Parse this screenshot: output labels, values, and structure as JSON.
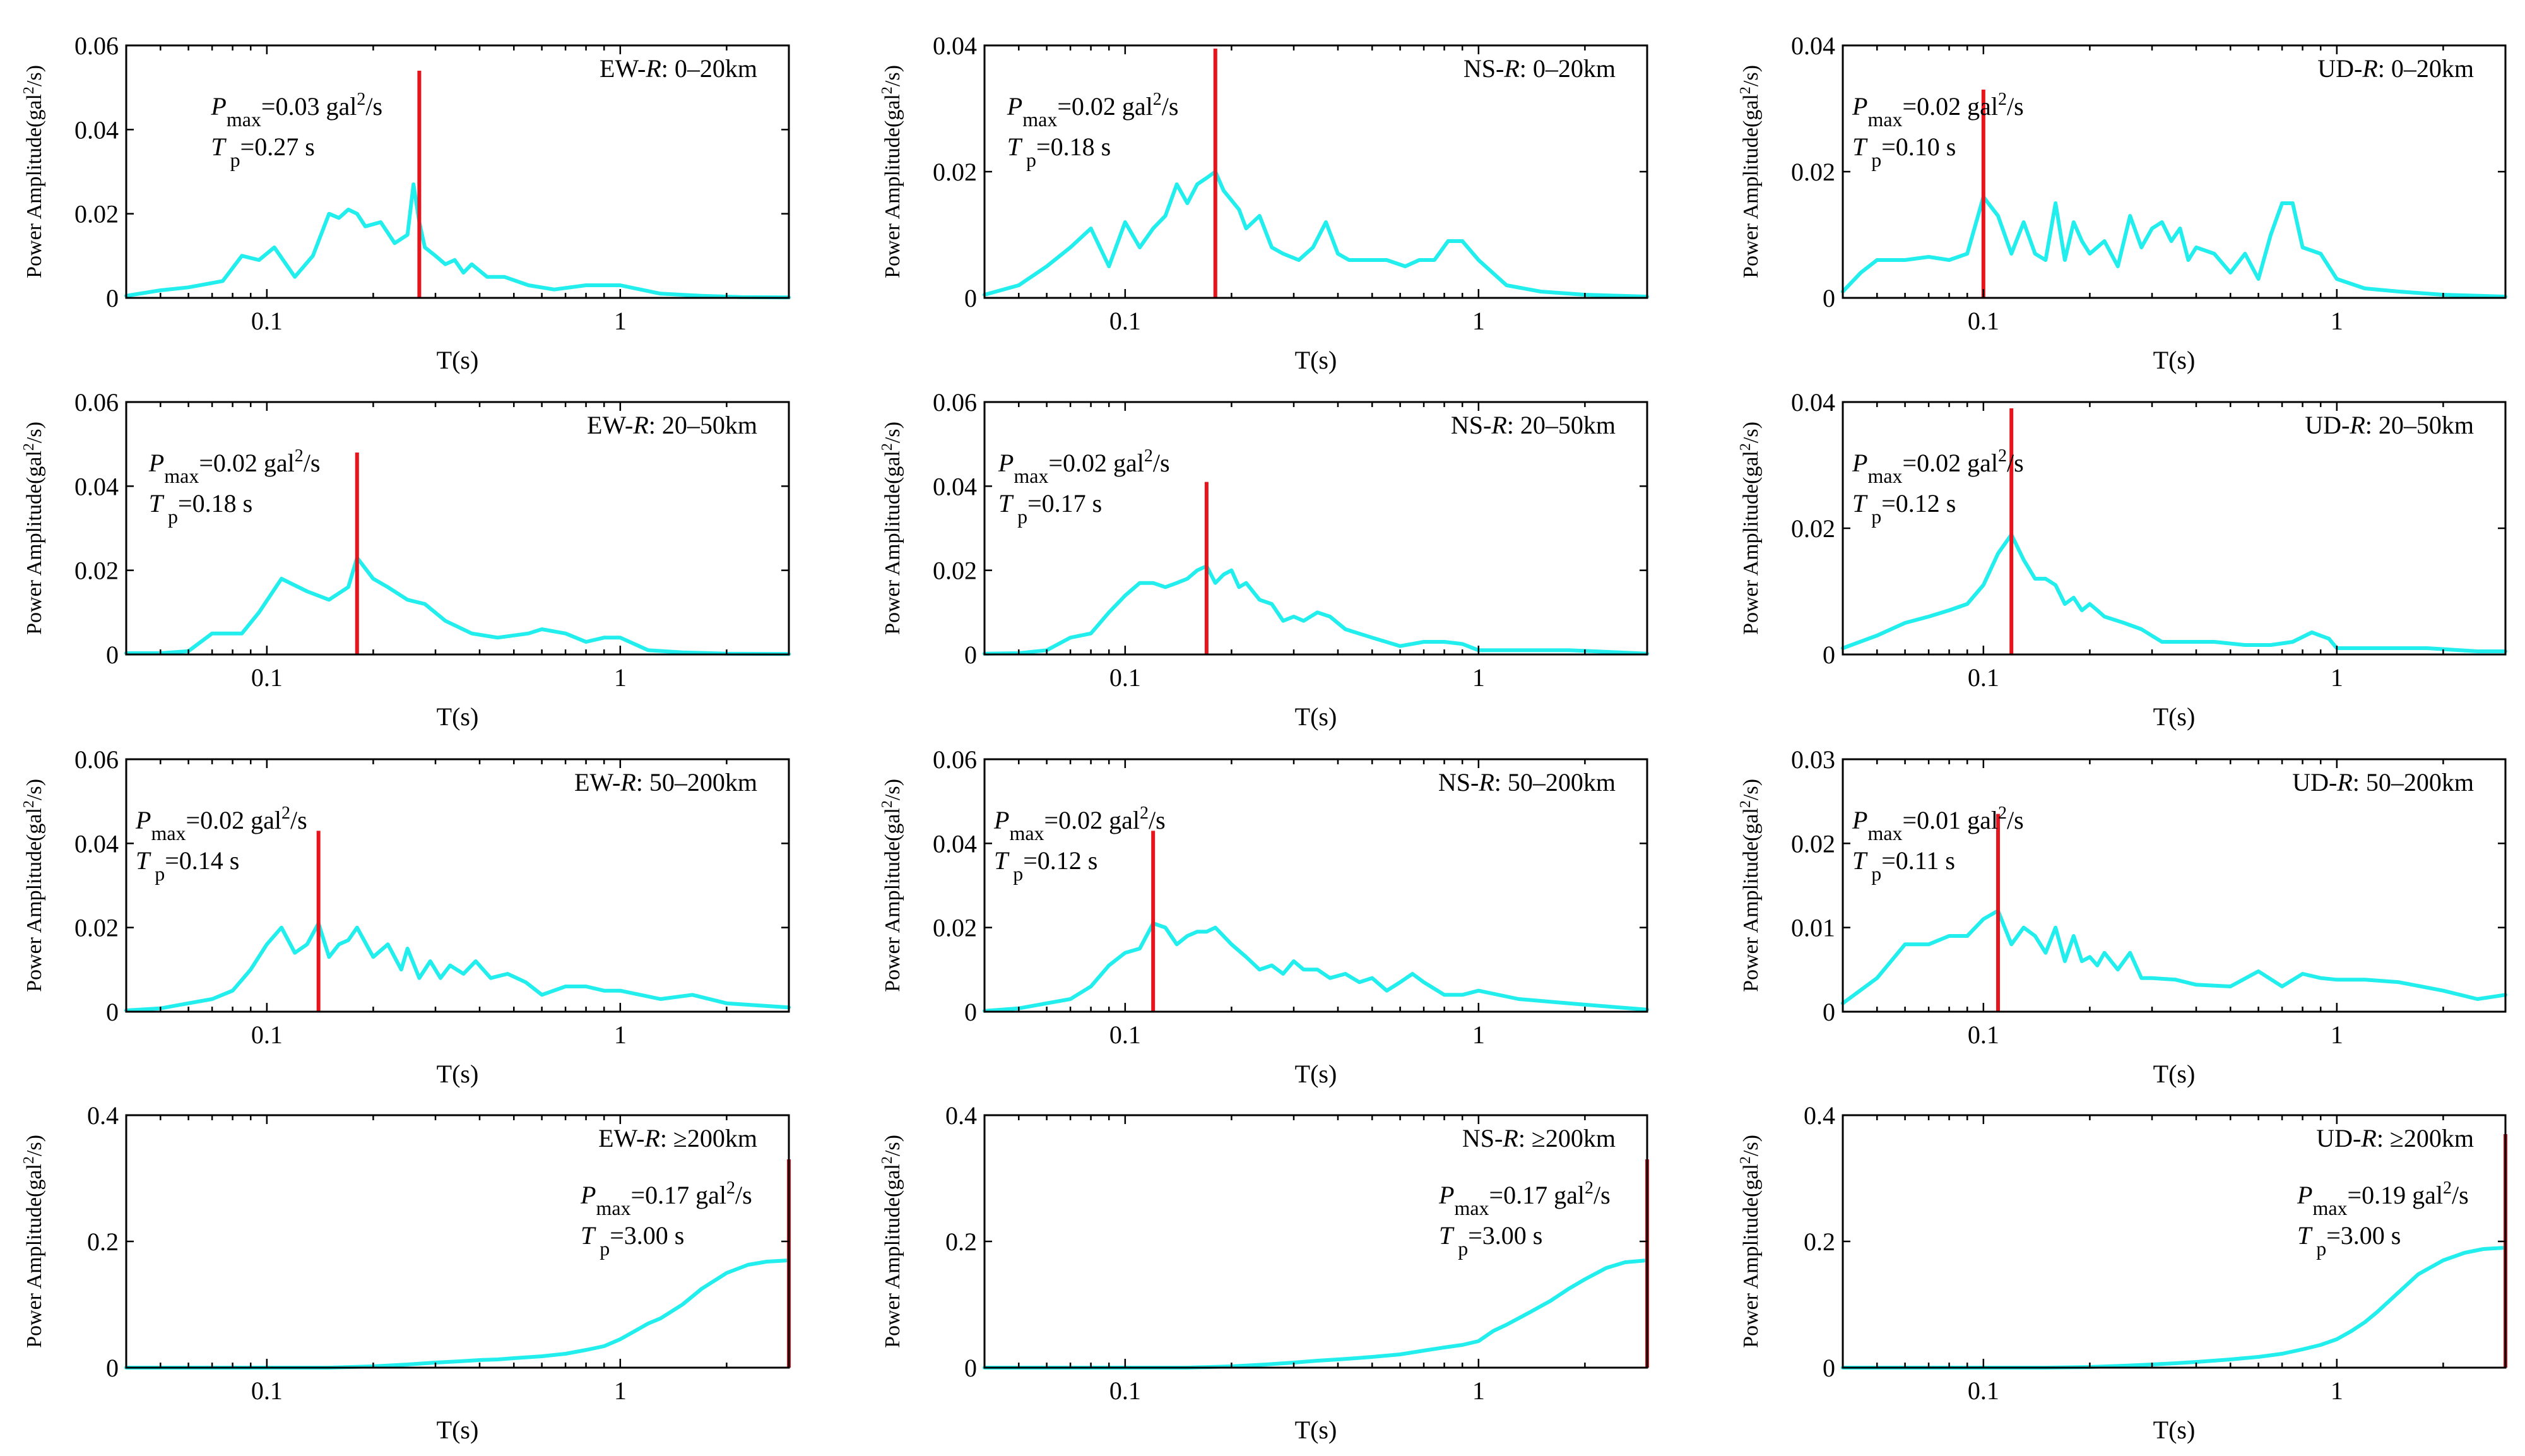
{
  "figure": {
    "x_axis_label": "T(s)",
    "y_axis_label": "Power Amplitude(gal",
    "y_axis_label_unit": "/s)",
    "y_axis_label_sup": "2",
    "annotation_labels": {
      "p": "P",
      "p_sub": "max",
      "t": "T",
      "t_sub": "p",
      "gal": "gal",
      "gal_sup": "2",
      "per_s": "/s"
    }
  },
  "chart_data": [
    {
      "type": "line",
      "title_comp": "EW-",
      "title_r": "R",
      "title_range": ": 0–20km",
      "xscale": "log",
      "xlim": [
        0.04,
        3.0
      ],
      "ylim": [
        0,
        0.06
      ],
      "yticks": [
        "0",
        "0.02",
        "0.04",
        "0.06"
      ],
      "xticks": [
        "0.1",
        "1"
      ],
      "x": [
        0.04,
        0.05,
        0.06,
        0.075,
        0.085,
        0.095,
        0.105,
        0.12,
        0.135,
        0.15,
        0.16,
        0.17,
        0.18,
        0.19,
        0.21,
        0.23,
        0.25,
        0.26,
        0.27,
        0.28,
        0.3,
        0.32,
        0.34,
        0.36,
        0.38,
        0.42,
        0.47,
        0.55,
        0.65,
        0.8,
        1.0,
        1.3,
        1.7,
        2.2,
        3.0
      ],
      "y": [
        0.0005,
        0.0018,
        0.0025,
        0.004,
        0.01,
        0.009,
        0.012,
        0.005,
        0.01,
        0.02,
        0.019,
        0.021,
        0.02,
        0.017,
        0.018,
        0.013,
        0.015,
        0.027,
        0.018,
        0.012,
        0.01,
        0.008,
        0.009,
        0.006,
        0.008,
        0.005,
        0.005,
        0.003,
        0.002,
        0.003,
        0.003,
        0.001,
        0.0005,
        0.0002,
        0.0001
      ],
      "peak_t": 0.27,
      "peak_line_top": 0.054,
      "p_max": "=0.03",
      "t_p": "=0.27 s",
      "annot_pos": "upper-left"
    },
    {
      "type": "line",
      "title_comp": "NS-",
      "title_r": "R",
      "title_range": ": 0–20km",
      "xscale": "log",
      "xlim": [
        0.04,
        3.0
      ],
      "ylim": [
        0,
        0.04
      ],
      "yticks": [
        "0",
        "0.02",
        "0.04"
      ],
      "xticks": [
        "0.1",
        "1"
      ],
      "x": [
        0.04,
        0.05,
        0.06,
        0.07,
        0.08,
        0.09,
        0.1,
        0.11,
        0.12,
        0.13,
        0.14,
        0.15,
        0.16,
        0.17,
        0.18,
        0.19,
        0.21,
        0.22,
        0.24,
        0.26,
        0.28,
        0.31,
        0.34,
        0.37,
        0.4,
        0.43,
        0.47,
        0.55,
        0.62,
        0.68,
        0.75,
        0.82,
        0.9,
        1.0,
        1.2,
        1.5,
        2.0,
        3.0
      ],
      "y": [
        0.0005,
        0.002,
        0.005,
        0.008,
        0.011,
        0.005,
        0.012,
        0.008,
        0.011,
        0.013,
        0.018,
        0.015,
        0.018,
        0.019,
        0.02,
        0.017,
        0.014,
        0.011,
        0.013,
        0.008,
        0.007,
        0.006,
        0.008,
        0.012,
        0.007,
        0.006,
        0.006,
        0.006,
        0.005,
        0.006,
        0.006,
        0.009,
        0.009,
        0.006,
        0.002,
        0.001,
        0.0005,
        0.0002
      ],
      "peak_t": 0.18,
      "peak_line_top": 0.0395,
      "p_max": "=0.02",
      "t_p": "=0.18 s",
      "annot_pos": "upper-left"
    },
    {
      "type": "line",
      "title_comp": "UD-",
      "title_r": "R",
      "title_range": ": 0–20km",
      "xscale": "log",
      "xlim": [
        0.04,
        3.0
      ],
      "ylim": [
        0,
        0.04
      ],
      "yticks": [
        "0",
        "0.02",
        "0.04"
      ],
      "xticks": [
        "0.1",
        "1"
      ],
      "x": [
        0.04,
        0.045,
        0.05,
        0.06,
        0.07,
        0.08,
        0.09,
        0.1,
        0.11,
        0.12,
        0.13,
        0.14,
        0.15,
        0.16,
        0.17,
        0.18,
        0.19,
        0.2,
        0.22,
        0.24,
        0.26,
        0.28,
        0.3,
        0.32,
        0.34,
        0.36,
        0.38,
        0.4,
        0.45,
        0.5,
        0.55,
        0.6,
        0.65,
        0.7,
        0.75,
        0.8,
        0.9,
        1.0,
        1.2,
        1.5,
        2.0,
        3.0
      ],
      "y": [
        0.001,
        0.004,
        0.006,
        0.006,
        0.0065,
        0.006,
        0.007,
        0.016,
        0.013,
        0.007,
        0.012,
        0.007,
        0.006,
        0.015,
        0.006,
        0.012,
        0.009,
        0.007,
        0.009,
        0.005,
        0.013,
        0.008,
        0.011,
        0.012,
        0.009,
        0.011,
        0.006,
        0.008,
        0.007,
        0.004,
        0.007,
        0.003,
        0.01,
        0.015,
        0.015,
        0.008,
        0.007,
        0.003,
        0.0015,
        0.001,
        0.0005,
        0.0002
      ],
      "peak_t": 0.1,
      "peak_line_top": 0.033,
      "p_max": "=0.02",
      "t_p": "=0.10 s",
      "annot_pos": "upper-left"
    },
    {
      "type": "line",
      "title_comp": "EW-",
      "title_r": "R",
      "title_range": ": 20–50km",
      "xscale": "log",
      "xlim": [
        0.04,
        3.0
      ],
      "ylim": [
        0,
        0.06
      ],
      "yticks": [
        "0",
        "0.02",
        "0.04",
        "0.06"
      ],
      "xticks": [
        "0.1",
        "1"
      ],
      "x": [
        0.04,
        0.05,
        0.06,
        0.07,
        0.075,
        0.085,
        0.095,
        0.11,
        0.13,
        0.15,
        0.17,
        0.18,
        0.2,
        0.22,
        0.25,
        0.28,
        0.32,
        0.38,
        0.45,
        0.55,
        0.6,
        0.7,
        0.8,
        0.9,
        1.0,
        1.2,
        1.5,
        2.0,
        3.0
      ],
      "y": [
        0.0003,
        0.0003,
        0.0008,
        0.005,
        0.005,
        0.005,
        0.01,
        0.018,
        0.015,
        0.013,
        0.016,
        0.023,
        0.018,
        0.016,
        0.013,
        0.012,
        0.008,
        0.005,
        0.004,
        0.005,
        0.006,
        0.005,
        0.003,
        0.004,
        0.004,
        0.001,
        0.0005,
        0.0002,
        0.0001
      ],
      "peak_t": 0.18,
      "peak_line_top": 0.048,
      "p_max": "=0.02",
      "t_p": "=0.18 s",
      "annot_pos": "upper-left"
    },
    {
      "type": "line",
      "title_comp": "NS-",
      "title_r": "R",
      "title_range": ": 20–50km",
      "xscale": "log",
      "xlim": [
        0.04,
        3.0
      ],
      "ylim": [
        0,
        0.06
      ],
      "yticks": [
        "0",
        "0.02",
        "0.04",
        "0.06"
      ],
      "xticks": [
        "0.1",
        "1"
      ],
      "x": [
        0.04,
        0.05,
        0.06,
        0.07,
        0.08,
        0.09,
        0.1,
        0.11,
        0.12,
        0.13,
        0.14,
        0.15,
        0.16,
        0.17,
        0.18,
        0.19,
        0.2,
        0.21,
        0.22,
        0.24,
        0.26,
        0.28,
        0.3,
        0.32,
        0.35,
        0.38,
        0.42,
        0.5,
        0.6,
        0.7,
        0.8,
        0.9,
        1.0,
        1.3,
        1.8,
        2.5,
        3.0
      ],
      "y": [
        0.0002,
        0.0003,
        0.001,
        0.004,
        0.005,
        0.01,
        0.014,
        0.017,
        0.017,
        0.016,
        0.017,
        0.018,
        0.02,
        0.021,
        0.017,
        0.019,
        0.02,
        0.016,
        0.017,
        0.013,
        0.012,
        0.008,
        0.009,
        0.008,
        0.01,
        0.009,
        0.006,
        0.004,
        0.002,
        0.003,
        0.003,
        0.0025,
        0.001,
        0.001,
        0.001,
        0.0005,
        0.0002
      ],
      "peak_t": 0.17,
      "peak_line_top": 0.041,
      "p_max": "=0.02",
      "t_p": "=0.17 s",
      "annot_pos": "upper-left"
    },
    {
      "type": "line",
      "title_comp": "UD-",
      "title_r": "R",
      "title_range": ": 20–50km",
      "xscale": "log",
      "xlim": [
        0.04,
        3.0
      ],
      "ylim": [
        0,
        0.04
      ],
      "yticks": [
        "0",
        "0.02",
        "0.04"
      ],
      "xticks": [
        "0.1",
        "1"
      ],
      "x": [
        0.04,
        0.05,
        0.06,
        0.07,
        0.08,
        0.09,
        0.1,
        0.11,
        0.12,
        0.13,
        0.14,
        0.15,
        0.16,
        0.17,
        0.18,
        0.19,
        0.2,
        0.21,
        0.22,
        0.25,
        0.28,
        0.32,
        0.38,
        0.45,
        0.55,
        0.65,
        0.75,
        0.85,
        0.95,
        1.0,
        1.3,
        1.8,
        2.5,
        3.0
      ],
      "y": [
        0.001,
        0.003,
        0.005,
        0.006,
        0.007,
        0.008,
        0.011,
        0.016,
        0.019,
        0.015,
        0.012,
        0.012,
        0.011,
        0.008,
        0.009,
        0.007,
        0.008,
        0.007,
        0.006,
        0.005,
        0.004,
        0.002,
        0.002,
        0.002,
        0.0015,
        0.0015,
        0.002,
        0.0035,
        0.0025,
        0.001,
        0.001,
        0.001,
        0.0005,
        0.0005
      ],
      "peak_t": 0.12,
      "peak_line_top": 0.039,
      "p_max": "=0.02",
      "t_p": "=0.12 s",
      "annot_pos": "upper-left"
    },
    {
      "type": "line",
      "title_comp": "EW-",
      "title_r": "R",
      "title_range": ": 50–200km",
      "xscale": "log",
      "xlim": [
        0.04,
        3.0
      ],
      "ylim": [
        0,
        0.06
      ],
      "yticks": [
        "0",
        "0.02",
        "0.04",
        "0.06"
      ],
      "xticks": [
        "0.1",
        "1"
      ],
      "x": [
        0.04,
        0.05,
        0.06,
        0.07,
        0.08,
        0.09,
        0.1,
        0.11,
        0.12,
        0.13,
        0.14,
        0.15,
        0.16,
        0.17,
        0.18,
        0.2,
        0.22,
        0.24,
        0.25,
        0.27,
        0.29,
        0.31,
        0.33,
        0.36,
        0.39,
        0.43,
        0.48,
        0.54,
        0.6,
        0.7,
        0.8,
        0.9,
        1.0,
        1.3,
        1.6,
        2.0,
        3.0
      ],
      "y": [
        0.0003,
        0.0008,
        0.002,
        0.003,
        0.005,
        0.01,
        0.016,
        0.02,
        0.014,
        0.016,
        0.021,
        0.013,
        0.016,
        0.017,
        0.02,
        0.013,
        0.016,
        0.01,
        0.015,
        0.008,
        0.012,
        0.008,
        0.011,
        0.009,
        0.012,
        0.008,
        0.009,
        0.007,
        0.004,
        0.006,
        0.006,
        0.005,
        0.005,
        0.003,
        0.004,
        0.002,
        0.001
      ],
      "peak_t": 0.14,
      "peak_line_top": 0.043,
      "p_max": "=0.02",
      "t_p": "=0.14 s",
      "annot_pos": "upper-left"
    },
    {
      "type": "line",
      "title_comp": "NS-",
      "title_r": "R",
      "title_range": ": 50–200km",
      "xscale": "log",
      "xlim": [
        0.04,
        3.0
      ],
      "ylim": [
        0,
        0.06
      ],
      "yticks": [
        "0",
        "0.02",
        "0.04",
        "0.06"
      ],
      "xticks": [
        "0.1",
        "1"
      ],
      "x": [
        0.04,
        0.05,
        0.06,
        0.07,
        0.08,
        0.09,
        0.1,
        0.11,
        0.12,
        0.13,
        0.14,
        0.15,
        0.16,
        0.17,
        0.18,
        0.2,
        0.22,
        0.24,
        0.26,
        0.28,
        0.3,
        0.32,
        0.35,
        0.38,
        0.42,
        0.46,
        0.5,
        0.55,
        0.6,
        0.65,
        0.7,
        0.8,
        0.9,
        1.0,
        1.3,
        1.8,
        2.5,
        3.0
      ],
      "y": [
        0.0002,
        0.0008,
        0.002,
        0.003,
        0.006,
        0.011,
        0.014,
        0.015,
        0.021,
        0.02,
        0.016,
        0.018,
        0.019,
        0.019,
        0.02,
        0.016,
        0.013,
        0.01,
        0.011,
        0.009,
        0.012,
        0.01,
        0.01,
        0.008,
        0.009,
        0.007,
        0.008,
        0.005,
        0.007,
        0.009,
        0.007,
        0.004,
        0.004,
        0.005,
        0.003,
        0.002,
        0.001,
        0.0005
      ],
      "peak_t": 0.12,
      "peak_line_top": 0.043,
      "p_max": "=0.02",
      "t_p": "=0.12 s",
      "annot_pos": "upper-left"
    },
    {
      "type": "line",
      "title_comp": "UD-",
      "title_r": "R",
      "title_range": ": 50–200km",
      "xscale": "log",
      "xlim": [
        0.04,
        3.0
      ],
      "ylim": [
        0,
        0.03
      ],
      "yticks": [
        "0",
        "0.01",
        "0.02",
        "0.03"
      ],
      "xticks": [
        "0.1",
        "1"
      ],
      "x": [
        0.04,
        0.05,
        0.06,
        0.07,
        0.08,
        0.09,
        0.1,
        0.11,
        0.12,
        0.13,
        0.14,
        0.15,
        0.16,
        0.17,
        0.18,
        0.19,
        0.2,
        0.21,
        0.22,
        0.24,
        0.26,
        0.28,
        0.3,
        0.35,
        0.4,
        0.5,
        0.6,
        0.7,
        0.8,
        0.9,
        1.0,
        1.2,
        1.5,
        2.0,
        2.5,
        3.0
      ],
      "y": [
        0.001,
        0.004,
        0.008,
        0.008,
        0.009,
        0.009,
        0.011,
        0.012,
        0.008,
        0.01,
        0.009,
        0.007,
        0.01,
        0.006,
        0.009,
        0.006,
        0.0065,
        0.0055,
        0.007,
        0.005,
        0.007,
        0.004,
        0.004,
        0.0038,
        0.0032,
        0.003,
        0.0048,
        0.003,
        0.0045,
        0.004,
        0.0038,
        0.0038,
        0.0035,
        0.0025,
        0.0015,
        0.002
      ],
      "peak_t": 0.11,
      "peak_line_top": 0.0235,
      "p_max": "=0.01",
      "t_p": "=0.11 s",
      "annot_pos": "upper-left"
    },
    {
      "type": "line",
      "title_comp": "EW-",
      "title_r": "R",
      "title_range": ": ≥200km",
      "xscale": "log",
      "xlim": [
        0.04,
        3.0
      ],
      "ylim": [
        0,
        0.4
      ],
      "yticks": [
        "0",
        "0.2",
        "0.4"
      ],
      "xticks": [
        "0.1",
        "1"
      ],
      "x": [
        0.04,
        0.08,
        0.1,
        0.15,
        0.2,
        0.25,
        0.3,
        0.35,
        0.4,
        0.45,
        0.5,
        0.6,
        0.7,
        0.8,
        0.9,
        1.0,
        1.1,
        1.2,
        1.3,
        1.5,
        1.7,
        2.0,
        2.3,
        2.6,
        3.0
      ],
      "y": [
        0,
        0,
        0,
        0,
        0.002,
        0.005,
        0.008,
        0.01,
        0.012,
        0.013,
        0.015,
        0.018,
        0.022,
        0.028,
        0.034,
        0.045,
        0.058,
        0.07,
        0.078,
        0.1,
        0.125,
        0.15,
        0.163,
        0.168,
        0.17
      ],
      "peak_t": 3.0,
      "peak_line_top": 0.33,
      "p_max": "=0.17",
      "t_p": "=3.00 s",
      "annot_pos": "right"
    },
    {
      "type": "line",
      "title_comp": "NS-",
      "title_r": "R",
      "title_range": ": ≥200km",
      "xscale": "log",
      "xlim": [
        0.04,
        3.0
      ],
      "ylim": [
        0,
        0.4
      ],
      "yticks": [
        "0",
        "0.2",
        "0.4"
      ],
      "xticks": [
        "0.1",
        "1"
      ],
      "x": [
        0.04,
        0.08,
        0.1,
        0.15,
        0.2,
        0.25,
        0.3,
        0.35,
        0.4,
        0.45,
        0.5,
        0.6,
        0.7,
        0.8,
        0.9,
        1.0,
        1.1,
        1.2,
        1.4,
        1.6,
        1.8,
        2.0,
        2.3,
        2.6,
        3.0
      ],
      "y": [
        0,
        0,
        0,
        0,
        0.002,
        0.005,
        0.008,
        0.011,
        0.013,
        0.015,
        0.017,
        0.021,
        0.027,
        0.032,
        0.036,
        0.042,
        0.058,
        0.068,
        0.088,
        0.106,
        0.125,
        0.14,
        0.158,
        0.167,
        0.17
      ],
      "peak_t": 3.0,
      "peak_line_top": 0.33,
      "p_max": "=0.17",
      "t_p": "=3.00 s",
      "annot_pos": "right"
    },
    {
      "type": "line",
      "title_comp": "UD-",
      "title_r": "R",
      "title_range": ": ≥200km",
      "xscale": "log",
      "xlim": [
        0.04,
        3.0
      ],
      "ylim": [
        0,
        0.4
      ],
      "yticks": [
        "0",
        "0.2",
        "0.4"
      ],
      "xticks": [
        "0.1",
        "1"
      ],
      "x": [
        0.04,
        0.08,
        0.1,
        0.15,
        0.2,
        0.25,
        0.3,
        0.35,
        0.4,
        0.5,
        0.6,
        0.7,
        0.8,
        0.9,
        1.0,
        1.1,
        1.2,
        1.3,
        1.5,
        1.7,
        2.0,
        2.3,
        2.6,
        3.0
      ],
      "y": [
        0,
        0,
        0,
        0,
        0.001,
        0.003,
        0.005,
        0.007,
        0.009,
        0.013,
        0.017,
        0.022,
        0.029,
        0.036,
        0.045,
        0.058,
        0.072,
        0.088,
        0.12,
        0.148,
        0.17,
        0.182,
        0.188,
        0.19
      ],
      "peak_t": 3.0,
      "peak_line_top": 0.37,
      "p_max": "=0.19",
      "t_p": "=3.00 s",
      "annot_pos": "right"
    }
  ]
}
